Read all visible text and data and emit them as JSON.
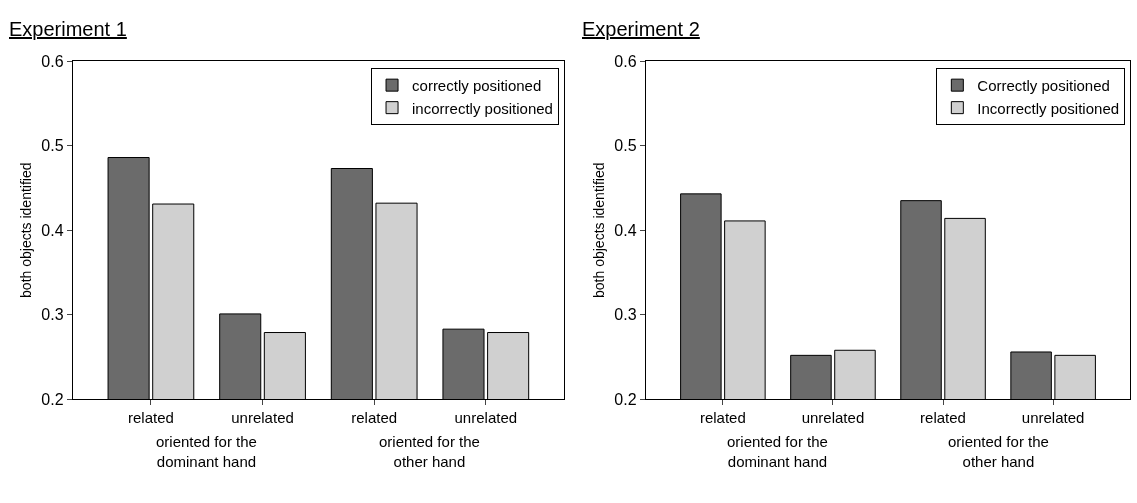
{
  "chart_data": [
    {
      "type": "bar",
      "title": "Experiment 1",
      "ylabel": "both objects identified",
      "categories": [
        "related",
        "unrelated",
        "related",
        "unrelated"
      ],
      "series": [
        {
          "name": "correctly positioned",
          "color": "#6b6b6b",
          "values": [
            0.486,
            0.301,
            0.473,
            0.283
          ]
        },
        {
          "name": "incorrectly positioned",
          "color": "#d0d0d0",
          "values": [
            0.431,
            0.279,
            0.432,
            0.279
          ]
        }
      ],
      "ylim": [
        0.2,
        0.6
      ],
      "yticks": [
        0.2,
        0.3,
        0.4,
        0.5,
        0.6
      ],
      "legend": "top right",
      "annotations": [
        "oriented for the\ndominant hand",
        "oriented for the\nother hand"
      ]
    },
    {
      "type": "bar",
      "title": "Experiment 2",
      "ylabel": "both objects identified",
      "categories": [
        "related",
        "unrelated",
        "related",
        "unrelated"
      ],
      "series": [
        {
          "name": "Correctly positioned",
          "color": "#6b6b6b",
          "values": [
            0.443,
            0.252,
            0.435,
            0.256
          ]
        },
        {
          "name": "Incorrectly positioned",
          "color": "#d0d0d0",
          "values": [
            0.411,
            0.258,
            0.414,
            0.252
          ]
        }
      ],
      "ylim": [
        0.2,
        0.6
      ],
      "yticks": [
        0.2,
        0.3,
        0.4,
        0.5,
        0.6
      ],
      "legend": "top right",
      "annotations": [
        "oriented for the\ndominant hand",
        "oriented for the\nother hand"
      ]
    }
  ]
}
